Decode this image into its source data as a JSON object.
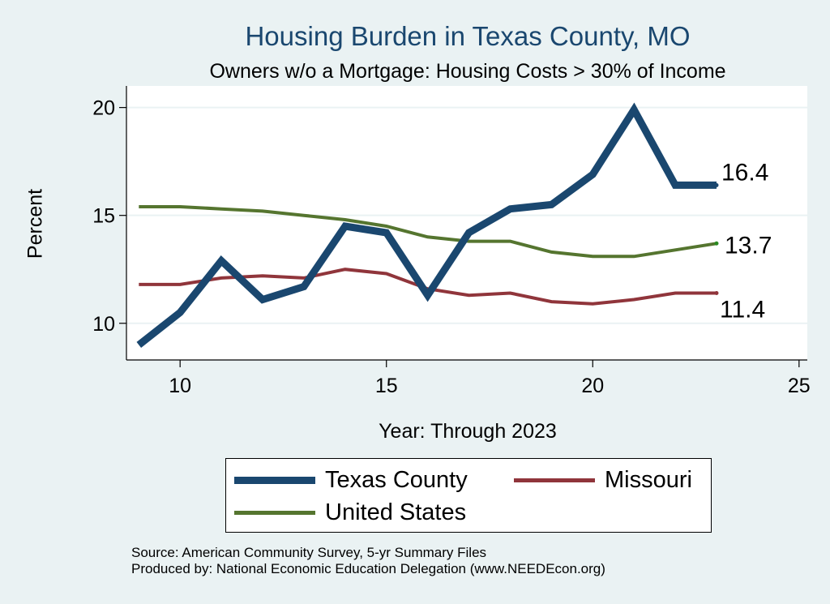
{
  "chart_data": {
    "type": "line",
    "title": "Housing Burden in Texas County, MO",
    "subtitle": "Owners w/o a Mortgage: Housing Costs > 30% of Income",
    "xlabel": "Year: Through 2023",
    "ylabel": "Percent",
    "xlim": [
      8.7,
      25.2
    ],
    "ylim": [
      8.3,
      21.0
    ],
    "xticks": [
      10,
      15,
      20,
      25
    ],
    "yticks": [
      10,
      15,
      20
    ],
    "grid": true,
    "legend_position": "bottom",
    "series": [
      {
        "name": "Texas County",
        "color": "#1a476f",
        "x": [
          9,
          10,
          11,
          12,
          13,
          14,
          15,
          16,
          17,
          18,
          19,
          20,
          21,
          22,
          23
        ],
        "values": [
          9.0,
          10.5,
          12.9,
          11.1,
          11.7,
          14.5,
          14.2,
          11.3,
          14.2,
          15.3,
          15.5,
          16.9,
          19.9,
          16.4,
          16.4
        ],
        "end_label": "16.4"
      },
      {
        "name": "Missouri",
        "color": "#90353b",
        "x": [
          9,
          10,
          11,
          12,
          13,
          14,
          15,
          16,
          17,
          18,
          19,
          20,
          21,
          22,
          23
        ],
        "values": [
          11.8,
          11.8,
          12.1,
          12.2,
          12.1,
          12.5,
          12.3,
          11.6,
          11.3,
          11.4,
          11.0,
          10.9,
          11.1,
          11.4,
          11.4
        ],
        "end_label": "11.4"
      },
      {
        "name": "United States",
        "color": "#55752f",
        "x": [
          9,
          10,
          11,
          12,
          13,
          14,
          15,
          16,
          17,
          18,
          19,
          20,
          21,
          22,
          23
        ],
        "values": [
          15.4,
          15.4,
          15.3,
          15.2,
          15.0,
          14.8,
          14.5,
          14.0,
          13.8,
          13.8,
          13.3,
          13.1,
          13.1,
          13.4,
          13.7
        ],
        "end_label": "13.7"
      }
    ]
  },
  "notes": {
    "source": "Source: American Community Survey, 5-yr Summary Files",
    "produced": "Produced by: National Economic Education Delegation (www.NEEDEcon.org)"
  }
}
